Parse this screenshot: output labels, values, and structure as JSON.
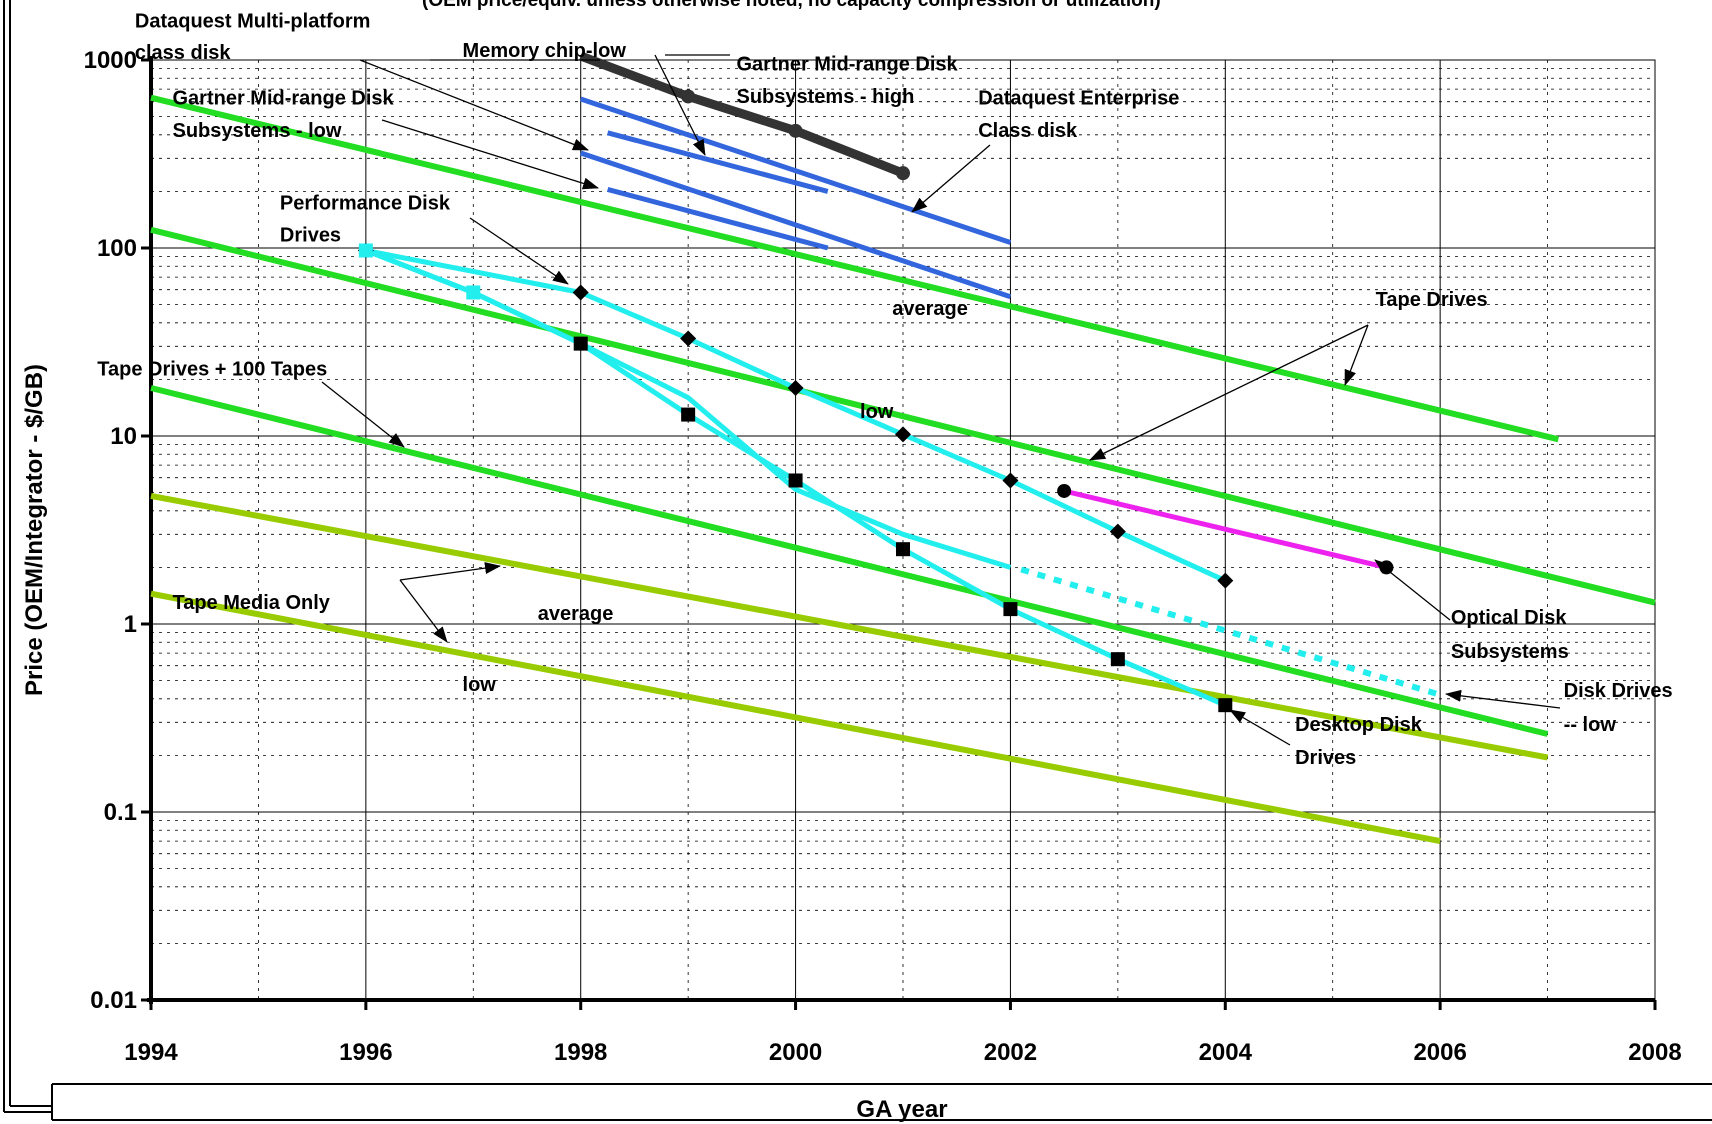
{
  "chart_data": {
    "type": "line",
    "subtitle": "(OEM price/equiv. unless otherwise noted, no capacity compression or utilization)",
    "xlabel": "GA year",
    "ylabel": "Price (OEM/Integrator - $/GB)",
    "xlim": [
      1994,
      2008
    ],
    "ylim": [
      0.01,
      1000
    ],
    "y_scale": "log",
    "grid": true,
    "legend": "none",
    "x_ticks": [
      1994,
      1996,
      1998,
      2000,
      2002,
      2004,
      2006,
      2008
    ],
    "y_ticks": [
      {
        "value": 1000,
        "label": "1000"
      },
      {
        "value": 100,
        "label": "100"
      },
      {
        "value": 10,
        "label": "10"
      },
      {
        "value": 1,
        "label": "1"
      },
      {
        "value": 0.1,
        "label": "0.1"
      },
      {
        "value": 0.01,
        "label": "0.01"
      }
    ],
    "series": [
      {
        "color": "#333333",
        "width": 9,
        "marker": "circle",
        "points": [
          [
            1998,
            1050
          ],
          [
            1999,
            640
          ],
          [
            2000,
            420
          ],
          [
            2001,
            250
          ]
        ]
      },
      {
        "color": "#3366dd",
        "width": 5,
        "points": [
          [
            1998,
            620
          ],
          [
            2002,
            107
          ]
        ]
      },
      {
        "color": "#3366dd",
        "width": 5,
        "points": [
          [
            1998.25,
            410
          ],
          [
            2000.3,
            200
          ]
        ]
      },
      {
        "color": "#3366dd",
        "width": 5,
        "points": [
          [
            1998,
            320
          ],
          [
            2002,
            55
          ]
        ]
      },
      {
        "color": "#3366dd",
        "width": 5,
        "points": [
          [
            1998.25,
            205
          ],
          [
            2000.3,
            100
          ]
        ]
      },
      {
        "color": "#22dd22",
        "width": 6,
        "points": [
          [
            1994,
            630
          ],
          [
            2007.1,
            9.6
          ]
        ]
      },
      {
        "color": "#22dd22",
        "width": 6,
        "points": [
          [
            1994,
            125
          ],
          [
            2008,
            1.3
          ]
        ]
      },
      {
        "color": "#22dd22",
        "width": 6,
        "points": [
          [
            1994,
            18
          ],
          [
            2007,
            0.26
          ]
        ]
      },
      {
        "color": "#99cc00",
        "width": 6,
        "points": [
          [
            1994,
            4.8
          ],
          [
            2007,
            0.195
          ]
        ]
      },
      {
        "color": "#99cc00",
        "width": 6,
        "points": [
          [
            1994,
            1.45
          ],
          [
            2006,
            0.07
          ]
        ]
      },
      {
        "color": "#22eeee",
        "width": 5,
        "marker": "diamond",
        "points": [
          [
            1996,
            97
          ],
          [
            1998,
            58
          ],
          [
            1999,
            33
          ],
          [
            2000,
            18
          ],
          [
            2001,
            10.2
          ],
          [
            2002,
            5.8
          ],
          [
            2003,
            3.1
          ],
          [
            2004,
            1.7
          ]
        ]
      },
      {
        "color": "#22eeee",
        "width": 5,
        "marker": "square",
        "points": [
          [
            1996,
            97
          ],
          [
            1997,
            58
          ],
          [
            1998,
            31
          ],
          [
            1999,
            13
          ],
          [
            2000,
            5.8
          ],
          [
            2001,
            2.5
          ],
          [
            2002,
            1.2
          ],
          [
            2003,
            0.65
          ],
          [
            2004,
            0.37
          ]
        ]
      },
      {
        "color": "#22eeee",
        "width": 5,
        "points": [
          [
            1996,
            97
          ],
          [
            1997,
            58
          ],
          [
            1998,
            31
          ],
          [
            1999,
            16
          ],
          [
            2000,
            5.2
          ],
          [
            2001,
            3.0
          ],
          [
            2002,
            2.0
          ]
        ]
      },
      {
        "color": "#22eeee",
        "width": 6,
        "dash": true,
        "points": [
          [
            2002.1,
            1.95
          ],
          [
            2006,
            0.42
          ]
        ]
      },
      {
        "color": "#ee22ee",
        "width": 5,
        "marker": "circle",
        "points": [
          [
            2002.5,
            5.1
          ],
          [
            2005.5,
            2.0
          ]
        ]
      }
    ],
    "annotations": [
      {
        "text": "Dataquest Multi-platform",
        "x": 1993.85,
        "y": 1490
      },
      {
        "text": "class disk",
        "x": 1993.85,
        "y": 1010
      },
      {
        "text": "Memory chip-low",
        "x": 1996.9,
        "y": 1040
      },
      {
        "text": "Gartner Mid-range Disk",
        "x": 1999.45,
        "y": 880
      },
      {
        "text": "Subsystems - high",
        "x": 1999.45,
        "y": 590
      },
      {
        "text": "Dataquest Enterprise",
        "x": 2001.7,
        "y": 580
      },
      {
        "text": "Class disk",
        "x": 2001.7,
        "y": 390
      },
      {
        "text": "Gartner Mid-range Disk",
        "x": 1994.2,
        "y": 580
      },
      {
        "text": "Subsystems - low",
        "x": 1994.2,
        "y": 390
      },
      {
        "text": "Performance Disk",
        "x": 1995.2,
        "y": 160
      },
      {
        "text": "Drives",
        "x": 1995.2,
        "y": 108
      },
      {
        "text": "Tape Drives",
        "x": 2005.4,
        "y": 49
      },
      {
        "text": "average",
        "x": 2000.9,
        "y": 44
      },
      {
        "text": "Tape Drives + 100 Tapes",
        "x": 1993.5,
        "y": 21
      },
      {
        "text": "low",
        "x": 2000.6,
        "y": 12.5
      },
      {
        "text": "Tape Media Only",
        "x": 1994.2,
        "y": 1.2
      },
      {
        "text": "average",
        "x": 1997.6,
        "y": 1.05
      },
      {
        "text": "low",
        "x": 1996.9,
        "y": 0.44
      },
      {
        "text": "Optical Disk",
        "x": 2006.1,
        "y": 1.0
      },
      {
        "text": "Subsystems",
        "x": 2006.1,
        "y": 0.66
      },
      {
        "text": "Disk Drives",
        "x": 2007.15,
        "y": 0.41
      },
      {
        "text": "-- low",
        "x": 2007.15,
        "y": 0.27
      },
      {
        "text": "Desktop Disk",
        "x": 2004.65,
        "y": 0.27
      },
      {
        "text": "Drives",
        "x": 2004.65,
        "y": 0.18
      }
    ]
  }
}
